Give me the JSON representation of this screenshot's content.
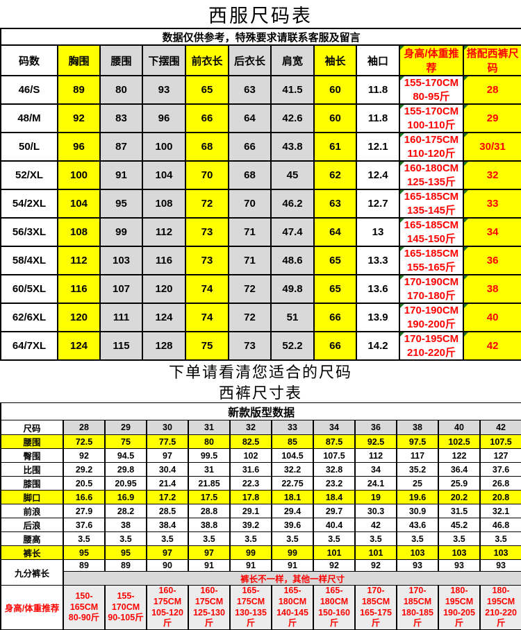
{
  "colors": {
    "highlight_yellow": "#ffff00",
    "row_gray": "#d9d9d9",
    "accent_red": "#ff0000",
    "corner_green": "#217a21"
  },
  "suit_table": {
    "title": "西服尺码表",
    "notice": "数据仅供参考，特殊要求请联系客服及留言",
    "columns": [
      "码数",
      "胸围",
      "腰围",
      "下摆围",
      "前衣长",
      "后衣长",
      "肩宽",
      "袖长",
      "袖口",
      "身高/体重推荐",
      "搭配西裤尺码"
    ],
    "rows": [
      {
        "size": "46/S",
        "values": [
          "89",
          "80",
          "93",
          "65",
          "63",
          "41.5",
          "60",
          "11.8"
        ],
        "fit": [
          "155-170CM",
          "80-95斤"
        ],
        "pants": "28"
      },
      {
        "size": "48/M",
        "values": [
          "92",
          "83",
          "96",
          "66",
          "64",
          "42.6",
          "60",
          "11.8"
        ],
        "fit": [
          "155-170CM",
          "100-110斤"
        ],
        "pants": "29"
      },
      {
        "size": "50/L",
        "values": [
          "96",
          "87",
          "100",
          "68",
          "66",
          "43.8",
          "61",
          "12.1"
        ],
        "fit": [
          "160-175CM",
          "110-120斤"
        ],
        "pants": "30/31"
      },
      {
        "size": "52/XL",
        "values": [
          "100",
          "91",
          "104",
          "70",
          "68",
          "45",
          "62",
          "12.4"
        ],
        "fit": [
          "160-180CM",
          "125-135斤"
        ],
        "pants": "32"
      },
      {
        "size": "54/2XL",
        "values": [
          "104",
          "95",
          "108",
          "72",
          "70",
          "46.2",
          "63",
          "12.7"
        ],
        "fit": [
          "165-185CM",
          "135-145斤"
        ],
        "pants": "33"
      },
      {
        "size": "56/3XL",
        "values": [
          "108",
          "99",
          "112",
          "73",
          "71",
          "47.4",
          "64",
          "13"
        ],
        "fit": [
          "165-185CM",
          "145-150斤"
        ],
        "pants": "34"
      },
      {
        "size": "58/4XL",
        "values": [
          "112",
          "103",
          "116",
          "73",
          "71",
          "48.6",
          "65",
          "13.3"
        ],
        "fit": [
          "165-185CM",
          "155-165斤"
        ],
        "pants": "36"
      },
      {
        "size": "60/5XL",
        "values": [
          "116",
          "107",
          "120",
          "74",
          "72",
          "49.8",
          "65",
          "13.6"
        ],
        "fit": [
          "170-190CM",
          "170-180斤"
        ],
        "pants": "38"
      },
      {
        "size": "62/6XL",
        "values": [
          "120",
          "111",
          "124",
          "74",
          "72",
          "51",
          "66",
          "13.9"
        ],
        "fit": [
          "170-190CM",
          "190-200斤"
        ],
        "pants": "40"
      },
      {
        "size": "64/7XL",
        "values": [
          "124",
          "115",
          "128",
          "75",
          "73",
          "52.2",
          "66",
          "14.2"
        ],
        "fit": [
          "170-195CM",
          "210-220斤"
        ],
        "pants": "42"
      }
    ]
  },
  "middle": {
    "line1": "下单请看清您适合的尺码",
    "line2": "西裤尺寸表"
  },
  "pants_table": {
    "header": "新款版型数据",
    "size_row_label": "尺码",
    "sizes": [
      "28",
      "29",
      "30",
      "31",
      "32",
      "33",
      "34",
      "36",
      "38",
      "40",
      "42"
    ],
    "rows": [
      {
        "label": "腰围",
        "highlight": true,
        "values": [
          "72.5",
          "75",
          "77.5",
          "80",
          "82.5",
          "85",
          "87.5",
          "92.5",
          "97.5",
          "102.5",
          "107.5"
        ]
      },
      {
        "label": "臀围",
        "highlight": false,
        "values": [
          "92",
          "94.5",
          "97",
          "99.5",
          "102",
          "104.5",
          "107.5",
          "112",
          "117",
          "122",
          "127"
        ]
      },
      {
        "label": "比围",
        "highlight": false,
        "values": [
          "29.2",
          "29.8",
          "30.4",
          "31",
          "31.6",
          "32.2",
          "32.8",
          "34",
          "35.2",
          "36.4",
          "37.6"
        ]
      },
      {
        "label": "膝围",
        "highlight": false,
        "values": [
          "20.5",
          "20.95",
          "21.4",
          "21.85",
          "22.3",
          "22.75",
          "23.2",
          "24.1",
          "25",
          "25.9",
          "26.8"
        ]
      },
      {
        "label": "脚口",
        "highlight": true,
        "values": [
          "16.6",
          "16.9",
          "17.2",
          "17.5",
          "17.8",
          "18.1",
          "18.4",
          "19",
          "19.6",
          "20.2",
          "20.8"
        ]
      },
      {
        "label": "前浪",
        "highlight": false,
        "values": [
          "27.9",
          "28.2",
          "28.5",
          "28.8",
          "29.1",
          "29.4",
          "29.7",
          "30.3",
          "30.9",
          "31.5",
          "32.1"
        ]
      },
      {
        "label": "后浪",
        "highlight": false,
        "values": [
          "37.6",
          "38",
          "38.4",
          "38.8",
          "39.2",
          "39.6",
          "40.4",
          "42",
          "43.6",
          "45.2",
          "46.8"
        ]
      },
      {
        "label": "腰高",
        "highlight": false,
        "values": [
          "3.5",
          "3.5",
          "3.5",
          "3.5",
          "3.5",
          "3.5",
          "3.5",
          "3.5",
          "3.5",
          "3.5",
          "3.5"
        ]
      },
      {
        "label": "裤长",
        "highlight": true,
        "values": [
          "95",
          "95",
          "97",
          "97",
          "99",
          "99",
          "101",
          "101",
          "103",
          "103",
          "103"
        ]
      }
    ],
    "ninefen": {
      "label": "九分裤长",
      "values": [
        "89",
        "89",
        "90",
        "91",
        "91",
        "91",
        "92",
        "92",
        "93",
        "93",
        "93"
      ],
      "note": "裤长不一样，其他一样尺寸"
    },
    "fit_row": {
      "label": "身高/体重推荐",
      "values": [
        [
          "150-165CM",
          "80-90斤"
        ],
        [
          "155-170CM",
          "90-105斤"
        ],
        [
          "160-175CM",
          "105-120斤"
        ],
        [
          "160-175CM",
          "125-130斤"
        ],
        [
          "165-175CM",
          "130-135斤"
        ],
        [
          "165-180CM",
          "140-145斤"
        ],
        [
          "165-180CM",
          "150-160斤"
        ],
        [
          "170-185CM",
          "165-175斤"
        ],
        [
          "170-185CM",
          "180-185斤"
        ],
        [
          "180-195CM",
          "190-205斤"
        ],
        [
          "180-195CM",
          "210-220斤"
        ]
      ]
    }
  }
}
